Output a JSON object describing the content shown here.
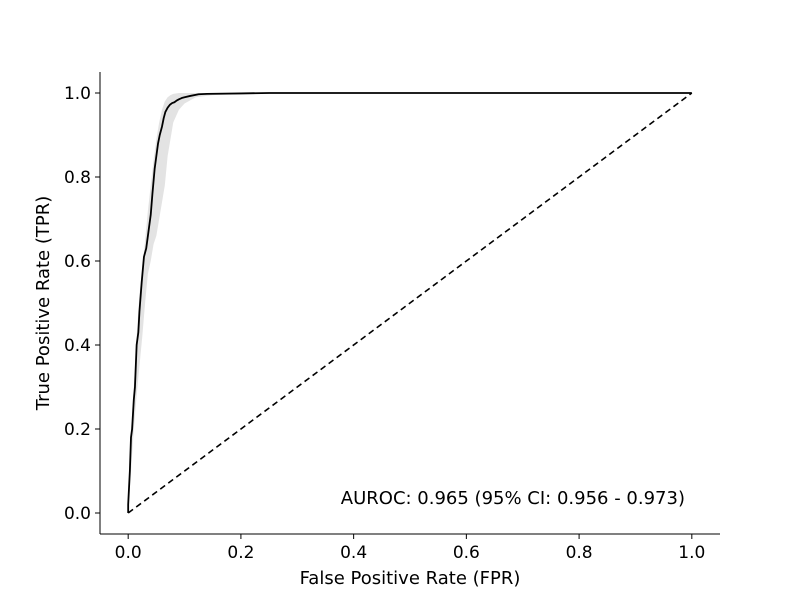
{
  "chart_data": {
    "type": "line",
    "title": "",
    "xlabel": "False Positive Rate (FPR)",
    "ylabel": "True Positive Rate (TPR)",
    "xlim": [
      -0.05,
      1.05
    ],
    "ylim": [
      -0.05,
      1.05
    ],
    "x_ticks": [
      "0.0",
      "0.2",
      "0.4",
      "0.6",
      "0.8",
      "1.0"
    ],
    "y_ticks": [
      "0.0",
      "0.2",
      "0.4",
      "0.6",
      "0.8",
      "1.0"
    ],
    "grid": false,
    "spines": [
      "left",
      "bottom"
    ],
    "annotation": "AUROC: 0.965 (95% CI: 0.956 - 0.973)",
    "annotation_position": "bottom-right",
    "series": [
      {
        "role": "roc-curve",
        "style": "solid",
        "color": "#000000",
        "x": [
          0.0,
          0.0,
          0.003,
          0.005,
          0.007,
          0.01,
          0.012,
          0.015,
          0.018,
          0.02,
          0.024,
          0.028,
          0.032,
          0.036,
          0.04,
          0.043,
          0.047,
          0.05,
          0.053,
          0.056,
          0.06,
          0.063,
          0.066,
          0.068,
          0.07,
          0.074,
          0.078,
          0.082,
          0.086,
          0.09,
          0.095,
          0.1,
          0.11,
          0.125,
          0.14,
          0.2,
          0.25,
          0.4,
          0.6,
          0.8,
          1.0
        ],
        "y": [
          0.0,
          0.02,
          0.1,
          0.18,
          0.2,
          0.27,
          0.3,
          0.4,
          0.43,
          0.48,
          0.55,
          0.61,
          0.63,
          0.67,
          0.71,
          0.76,
          0.82,
          0.85,
          0.88,
          0.9,
          0.92,
          0.94,
          0.955,
          0.96,
          0.965,
          0.972,
          0.976,
          0.978,
          0.982,
          0.985,
          0.988,
          0.99,
          0.993,
          0.997,
          0.998,
          0.999,
          1.0,
          1.0,
          1.0,
          1.0,
          1.0
        ]
      },
      {
        "role": "chance-line",
        "style": "dashed",
        "color": "#000000",
        "x": [
          0.0,
          1.0
        ],
        "y": [
          0.0,
          1.0
        ]
      }
    ],
    "confidence_band": {
      "color": "#d9d9d9",
      "x": [
        0.0,
        0.005,
        0.01,
        0.015,
        0.02,
        0.025,
        0.03,
        0.035,
        0.04,
        0.045,
        0.05,
        0.055,
        0.06,
        0.065,
        0.07,
        0.075,
        0.08,
        0.09,
        0.1,
        0.12,
        0.15,
        0.2,
        0.25
      ],
      "lower": [
        0.0,
        0.1,
        0.2,
        0.28,
        0.35,
        0.42,
        0.5,
        0.57,
        0.6,
        0.64,
        0.66,
        0.7,
        0.74,
        0.78,
        0.85,
        0.89,
        0.93,
        0.96,
        0.975,
        0.99,
        0.995,
        0.998,
        0.999
      ],
      "upper": [
        0.04,
        0.2,
        0.3,
        0.42,
        0.52,
        0.58,
        0.65,
        0.72,
        0.78,
        0.84,
        0.89,
        0.93,
        0.96,
        0.98,
        0.99,
        0.995,
        0.998,
        1.0,
        1.0,
        1.0,
        1.0,
        1.0,
        1.0
      ]
    }
  }
}
